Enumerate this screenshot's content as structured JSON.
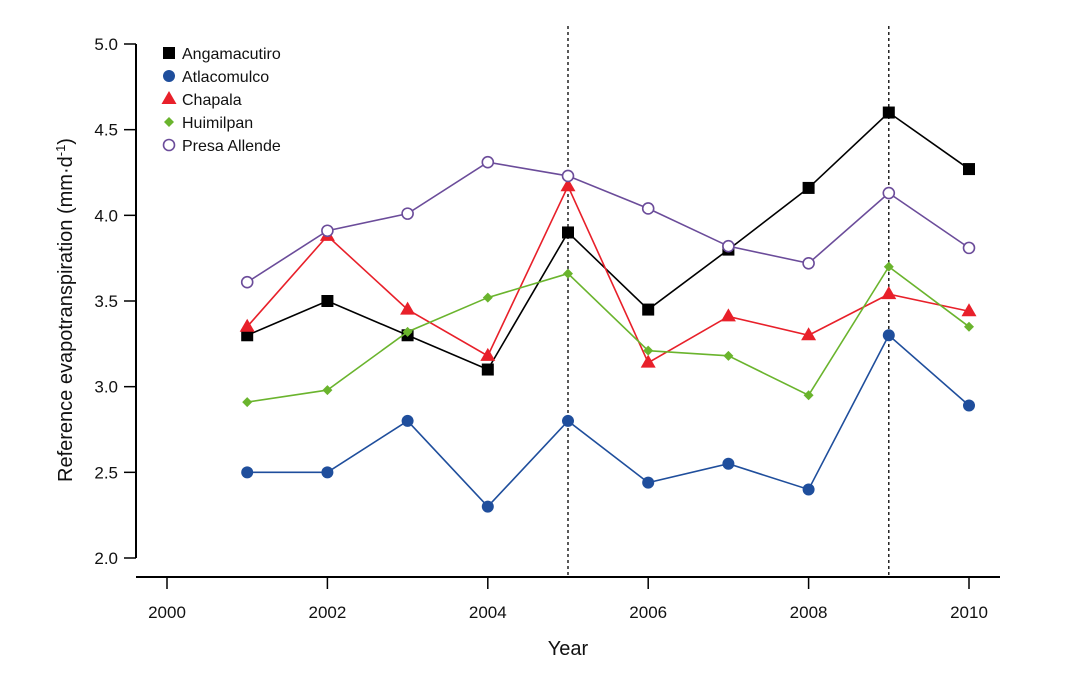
{
  "chart_data": {
    "type": "line",
    "title": "",
    "xlabel": "Year",
    "ylabel": "Reference evapotranspiration (mm·d",
    "ylabel_sup": "-1",
    "ylabel_close": ")",
    "xlim": [
      2000,
      2010
    ],
    "ylim": [
      2.0,
      5.0
    ],
    "xticks": [
      2000,
      2002,
      2004,
      2006,
      2008,
      2010
    ],
    "yticks": [
      "2.0",
      "2.5",
      "3.0",
      "3.5",
      "4.0",
      "4.5",
      "5.0"
    ],
    "grid": false,
    "legend_position": "top-left",
    "vertical_reference_lines": [
      2005,
      2009
    ],
    "x": [
      2001,
      2002,
      2003,
      2004,
      2005,
      2006,
      2007,
      2008,
      2009,
      2010
    ],
    "series": [
      {
        "name": "Angamacutiro",
        "color": "#000000",
        "marker": "square",
        "values": [
          3.3,
          3.5,
          3.3,
          3.1,
          3.9,
          3.45,
          3.8,
          4.16,
          4.6,
          4.27
        ]
      },
      {
        "name": "Atlacomulco",
        "color": "#1f4e9c",
        "marker": "circle",
        "values": [
          2.5,
          2.5,
          2.8,
          2.3,
          2.8,
          2.44,
          2.55,
          2.4,
          3.3,
          2.89
        ]
      },
      {
        "name": "Chapala",
        "color": "#e8202a",
        "marker": "triangle",
        "values": [
          3.35,
          3.88,
          3.45,
          3.18,
          4.17,
          3.14,
          3.41,
          3.3,
          3.54,
          3.44
        ]
      },
      {
        "name": "Huimilpan",
        "color": "#6ab42d",
        "marker": "diamond",
        "values": [
          2.91,
          2.98,
          3.32,
          3.52,
          3.66,
          3.21,
          3.18,
          2.95,
          3.7,
          3.35
        ]
      },
      {
        "name": "Presa Allende",
        "color": "#6b4c9a",
        "marker": "open-circle",
        "values": [
          3.61,
          3.91,
          4.01,
          4.31,
          4.23,
          4.04,
          3.82,
          3.72,
          4.13,
          3.81
        ]
      }
    ]
  }
}
